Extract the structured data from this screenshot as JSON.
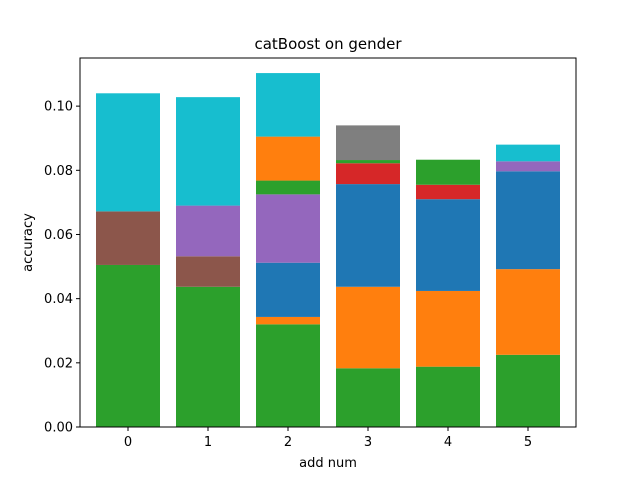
{
  "chart_data": {
    "type": "bar",
    "stacked": true,
    "title": "catBoost on gender",
    "xlabel": "add num",
    "ylabel": "accuracy",
    "categories": [
      "0",
      "1",
      "2",
      "3",
      "4",
      "5"
    ],
    "ylim": [
      0,
      0.115
    ],
    "yticks": [
      "0.00",
      "0.02",
      "0.04",
      "0.06",
      "0.08",
      "0.10"
    ],
    "grid": false,
    "segments": [
      [
        {
          "color": "#2ca02c",
          "top": 0.0505
        },
        {
          "color": "#8c564b",
          "top": 0.0672
        },
        {
          "color": "#17becf",
          "top": 0.104
        }
      ],
      [
        {
          "color": "#2ca02c",
          "top": 0.0437
        },
        {
          "color": "#8c564b",
          "top": 0.0532
        },
        {
          "color": "#9467bd",
          "top": 0.069
        },
        {
          "color": "#17becf",
          "top": 0.1028
        }
      ],
      [
        {
          "color": "#2ca02c",
          "top": 0.032
        },
        {
          "color": "#ff7f0e",
          "top": 0.0343
        },
        {
          "color": "#1f77b4",
          "top": 0.0512
        },
        {
          "color": "#9467bd",
          "top": 0.0725
        },
        {
          "color": "#2ca02c",
          "top": 0.0768
        },
        {
          "color": "#ff7f0e",
          "top": 0.0905
        },
        {
          "color": "#17becf",
          "top": 0.1103
        }
      ],
      [
        {
          "color": "#2ca02c",
          "top": 0.0183
        },
        {
          "color": "#ff7f0e",
          "top": 0.0437
        },
        {
          "color": "#1f77b4",
          "top": 0.0757
        },
        {
          "color": "#d62728",
          "top": 0.0822
        },
        {
          "color": "#2ca02c",
          "top": 0.0832
        },
        {
          "color": "#7f7f7f",
          "top": 0.094
        }
      ],
      [
        {
          "color": "#2ca02c",
          "top": 0.0188
        },
        {
          "color": "#ff7f0e",
          "top": 0.0424
        },
        {
          "color": "#1f77b4",
          "top": 0.071
        },
        {
          "color": "#d62728",
          "top": 0.0755
        },
        {
          "color": "#2ca02c",
          "top": 0.0833
        }
      ],
      [
        {
          "color": "#2ca02c",
          "top": 0.0225
        },
        {
          "color": "#ff7f0e",
          "top": 0.0492
        },
        {
          "color": "#1f77b4",
          "top": 0.0797
        },
        {
          "color": "#9467bd",
          "top": 0.0828
        },
        {
          "color": "#17becf",
          "top": 0.088
        }
      ]
    ]
  }
}
